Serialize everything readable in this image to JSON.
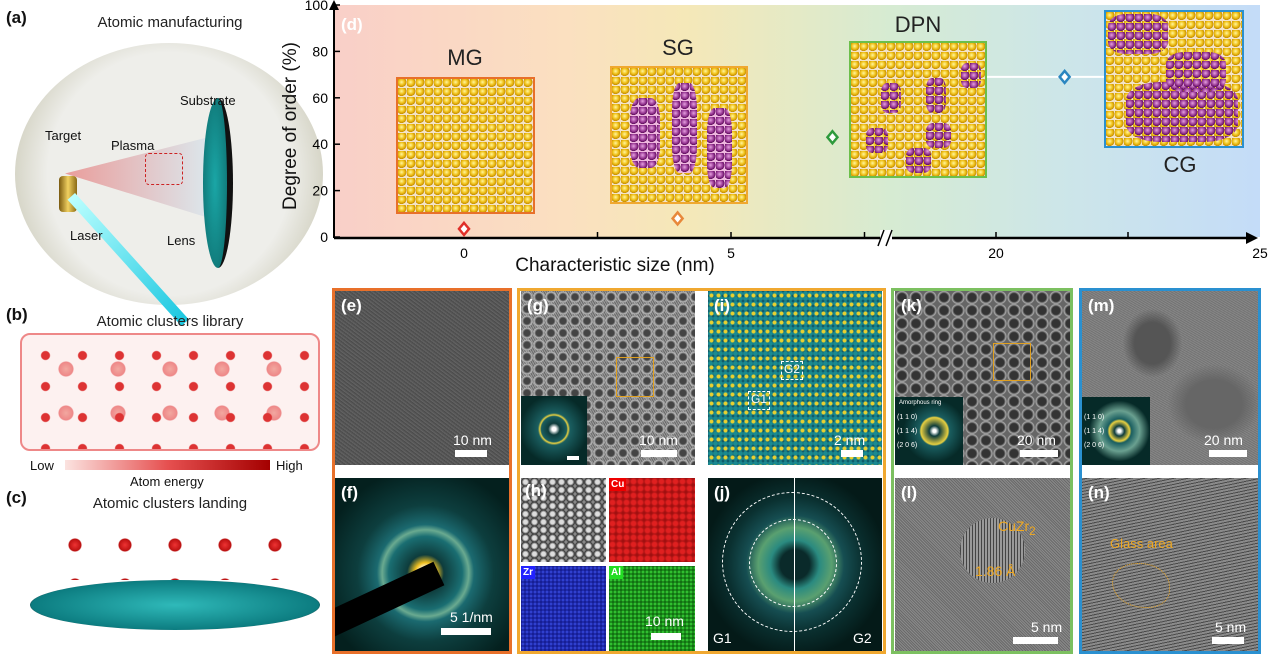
{
  "panel_a": {
    "label": "(a)",
    "title": "Atomic manufacturing",
    "parts": {
      "target": "Target",
      "plasma": "Plasma",
      "substrate": "Substrate",
      "laser": "Laser",
      "lens": "Lens"
    }
  },
  "panel_b": {
    "label": "(b)",
    "title": "Atomic clusters library",
    "low": "Low",
    "high": "High",
    "energy": "Atom energy"
  },
  "panel_c": {
    "label": "(c)",
    "title": "Atomic clusters landing"
  },
  "panel_d": {
    "label": "(d)",
    "insets": {
      "mg": "MG",
      "sg": "SG",
      "dpn": "DPN",
      "cg": "CG"
    }
  },
  "chart_data": {
    "type": "scatter",
    "xlabel": "Characteristic size (nm)",
    "ylabel": "Degree of order (%)",
    "ylim": [
      0,
      100
    ],
    "yticks": [
      "0",
      "20",
      "40",
      "60",
      "80",
      "100"
    ],
    "xticks": [
      "0",
      "5",
      "20",
      "25"
    ],
    "x_axis_break": [
      7.5,
      17.5
    ],
    "points": [
      {
        "name": "MG",
        "x": 0,
        "y": 3.5,
        "color": "#e0302a"
      },
      {
        "name": "SG",
        "x": 4.0,
        "y": 8,
        "color": "#e8883a"
      },
      {
        "name": "DPN",
        "x": 6.9,
        "y": 43,
        "color": "#2e9a3c"
      },
      {
        "name": "CG",
        "x": 21.3,
        "y": 69,
        "xerr": 1.5,
        "color": "#2a86c0"
      }
    ]
  },
  "panels": {
    "e": {
      "label": "(e)",
      "scale": "10 nm"
    },
    "f": {
      "label": "(f)",
      "scale": "5 1/nm"
    },
    "g": {
      "label": "(g)",
      "scale": "10 nm"
    },
    "h": {
      "label": "(h)",
      "scale": "10 nm",
      "cu": "Cu",
      "zr": "Zr",
      "al": "Al"
    },
    "i": {
      "label": "(i)",
      "scale": "2 nm",
      "g1": "G1",
      "g2": "G2"
    },
    "j": {
      "label": "(j)",
      "g1": "G1",
      "g2": "G2"
    },
    "k": {
      "label": "(k)",
      "scale": "20 nm",
      "ring": "Amorphous ring",
      "hkl": [
        "(1 1 0)",
        "(1 1 4)",
        "(2 0 6)"
      ]
    },
    "l": {
      "label": "(l)",
      "scale": "5 nm",
      "phase": "CuZr",
      "sub": "2",
      "spacing": "1.86 Å"
    },
    "m": {
      "label": "(m)",
      "scale": "20 nm",
      "hkl": [
        "(1 1 0)",
        "(1 1 4)",
        "(2 0 6)"
      ]
    },
    "n": {
      "label": "(n)",
      "scale": "5 nm",
      "glass": "Glass area"
    }
  }
}
